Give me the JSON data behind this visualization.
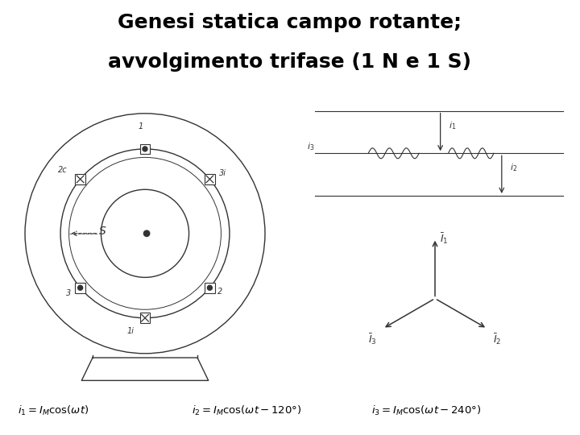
{
  "title_line1": "Genesi statica campo rotante;",
  "title_line2": "avvolgimento trifase (1 N e 1 S)",
  "title_fontsize": 18,
  "bg_color": "#ffffff",
  "formula1": "$i_1 = I_M \\cos(\\omega t)$",
  "formula2": "$i_2 = I_M \\cos(\\omega t - 120°)$",
  "formula3": "$i_3 = I_M \\cos(\\omega t - 240°)$",
  "color": "#333333"
}
